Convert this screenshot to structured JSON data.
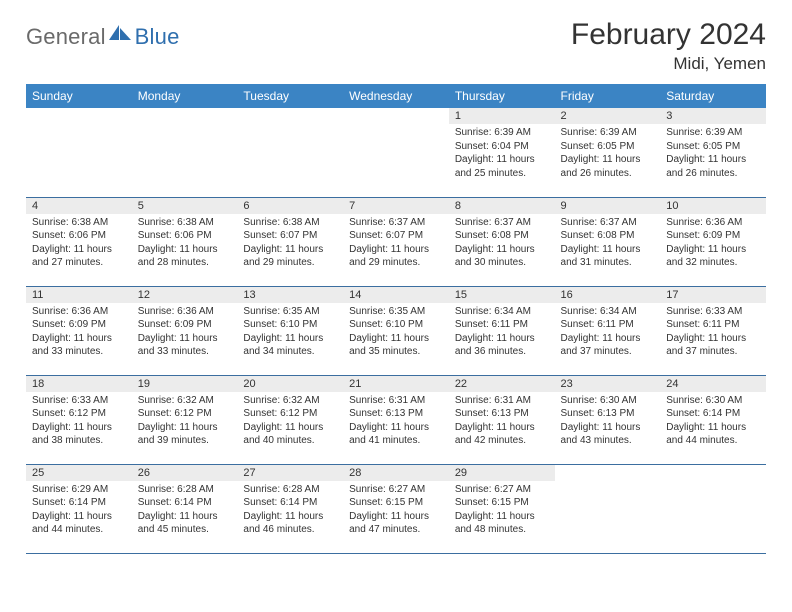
{
  "logo": {
    "general": "General",
    "blue": "Blue",
    "shape_color": "#2f6fae"
  },
  "title": "February 2024",
  "location": "Midi, Yemen",
  "colors": {
    "header_bg": "#3b84c4",
    "header_text": "#ffffff",
    "daynum_bg": "#ececec",
    "border": "#3b6ea0",
    "text": "#333333",
    "background": "#ffffff"
  },
  "day_names": [
    "Sunday",
    "Monday",
    "Tuesday",
    "Wednesday",
    "Thursday",
    "Friday",
    "Saturday"
  ],
  "weeks": [
    [
      {
        "num": "",
        "sunrise": "",
        "sunset": "",
        "daylight": ""
      },
      {
        "num": "",
        "sunrise": "",
        "sunset": "",
        "daylight": ""
      },
      {
        "num": "",
        "sunrise": "",
        "sunset": "",
        "daylight": ""
      },
      {
        "num": "",
        "sunrise": "",
        "sunset": "",
        "daylight": ""
      },
      {
        "num": "1",
        "sunrise": "Sunrise: 6:39 AM",
        "sunset": "Sunset: 6:04 PM",
        "daylight": "Daylight: 11 hours and 25 minutes."
      },
      {
        "num": "2",
        "sunrise": "Sunrise: 6:39 AM",
        "sunset": "Sunset: 6:05 PM",
        "daylight": "Daylight: 11 hours and 26 minutes."
      },
      {
        "num": "3",
        "sunrise": "Sunrise: 6:39 AM",
        "sunset": "Sunset: 6:05 PM",
        "daylight": "Daylight: 11 hours and 26 minutes."
      }
    ],
    [
      {
        "num": "4",
        "sunrise": "Sunrise: 6:38 AM",
        "sunset": "Sunset: 6:06 PM",
        "daylight": "Daylight: 11 hours and 27 minutes."
      },
      {
        "num": "5",
        "sunrise": "Sunrise: 6:38 AM",
        "sunset": "Sunset: 6:06 PM",
        "daylight": "Daylight: 11 hours and 28 minutes."
      },
      {
        "num": "6",
        "sunrise": "Sunrise: 6:38 AM",
        "sunset": "Sunset: 6:07 PM",
        "daylight": "Daylight: 11 hours and 29 minutes."
      },
      {
        "num": "7",
        "sunrise": "Sunrise: 6:37 AM",
        "sunset": "Sunset: 6:07 PM",
        "daylight": "Daylight: 11 hours and 29 minutes."
      },
      {
        "num": "8",
        "sunrise": "Sunrise: 6:37 AM",
        "sunset": "Sunset: 6:08 PM",
        "daylight": "Daylight: 11 hours and 30 minutes."
      },
      {
        "num": "9",
        "sunrise": "Sunrise: 6:37 AM",
        "sunset": "Sunset: 6:08 PM",
        "daylight": "Daylight: 11 hours and 31 minutes."
      },
      {
        "num": "10",
        "sunrise": "Sunrise: 6:36 AM",
        "sunset": "Sunset: 6:09 PM",
        "daylight": "Daylight: 11 hours and 32 minutes."
      }
    ],
    [
      {
        "num": "11",
        "sunrise": "Sunrise: 6:36 AM",
        "sunset": "Sunset: 6:09 PM",
        "daylight": "Daylight: 11 hours and 33 minutes."
      },
      {
        "num": "12",
        "sunrise": "Sunrise: 6:36 AM",
        "sunset": "Sunset: 6:09 PM",
        "daylight": "Daylight: 11 hours and 33 minutes."
      },
      {
        "num": "13",
        "sunrise": "Sunrise: 6:35 AM",
        "sunset": "Sunset: 6:10 PM",
        "daylight": "Daylight: 11 hours and 34 minutes."
      },
      {
        "num": "14",
        "sunrise": "Sunrise: 6:35 AM",
        "sunset": "Sunset: 6:10 PM",
        "daylight": "Daylight: 11 hours and 35 minutes."
      },
      {
        "num": "15",
        "sunrise": "Sunrise: 6:34 AM",
        "sunset": "Sunset: 6:11 PM",
        "daylight": "Daylight: 11 hours and 36 minutes."
      },
      {
        "num": "16",
        "sunrise": "Sunrise: 6:34 AM",
        "sunset": "Sunset: 6:11 PM",
        "daylight": "Daylight: 11 hours and 37 minutes."
      },
      {
        "num": "17",
        "sunrise": "Sunrise: 6:33 AM",
        "sunset": "Sunset: 6:11 PM",
        "daylight": "Daylight: 11 hours and 37 minutes."
      }
    ],
    [
      {
        "num": "18",
        "sunrise": "Sunrise: 6:33 AM",
        "sunset": "Sunset: 6:12 PM",
        "daylight": "Daylight: 11 hours and 38 minutes."
      },
      {
        "num": "19",
        "sunrise": "Sunrise: 6:32 AM",
        "sunset": "Sunset: 6:12 PM",
        "daylight": "Daylight: 11 hours and 39 minutes."
      },
      {
        "num": "20",
        "sunrise": "Sunrise: 6:32 AM",
        "sunset": "Sunset: 6:12 PM",
        "daylight": "Daylight: 11 hours and 40 minutes."
      },
      {
        "num": "21",
        "sunrise": "Sunrise: 6:31 AM",
        "sunset": "Sunset: 6:13 PM",
        "daylight": "Daylight: 11 hours and 41 minutes."
      },
      {
        "num": "22",
        "sunrise": "Sunrise: 6:31 AM",
        "sunset": "Sunset: 6:13 PM",
        "daylight": "Daylight: 11 hours and 42 minutes."
      },
      {
        "num": "23",
        "sunrise": "Sunrise: 6:30 AM",
        "sunset": "Sunset: 6:13 PM",
        "daylight": "Daylight: 11 hours and 43 minutes."
      },
      {
        "num": "24",
        "sunrise": "Sunrise: 6:30 AM",
        "sunset": "Sunset: 6:14 PM",
        "daylight": "Daylight: 11 hours and 44 minutes."
      }
    ],
    [
      {
        "num": "25",
        "sunrise": "Sunrise: 6:29 AM",
        "sunset": "Sunset: 6:14 PM",
        "daylight": "Daylight: 11 hours and 44 minutes."
      },
      {
        "num": "26",
        "sunrise": "Sunrise: 6:28 AM",
        "sunset": "Sunset: 6:14 PM",
        "daylight": "Daylight: 11 hours and 45 minutes."
      },
      {
        "num": "27",
        "sunrise": "Sunrise: 6:28 AM",
        "sunset": "Sunset: 6:14 PM",
        "daylight": "Daylight: 11 hours and 46 minutes."
      },
      {
        "num": "28",
        "sunrise": "Sunrise: 6:27 AM",
        "sunset": "Sunset: 6:15 PM",
        "daylight": "Daylight: 11 hours and 47 minutes."
      },
      {
        "num": "29",
        "sunrise": "Sunrise: 6:27 AM",
        "sunset": "Sunset: 6:15 PM",
        "daylight": "Daylight: 11 hours and 48 minutes."
      },
      {
        "num": "",
        "sunrise": "",
        "sunset": "",
        "daylight": ""
      },
      {
        "num": "",
        "sunrise": "",
        "sunset": "",
        "daylight": ""
      }
    ]
  ]
}
